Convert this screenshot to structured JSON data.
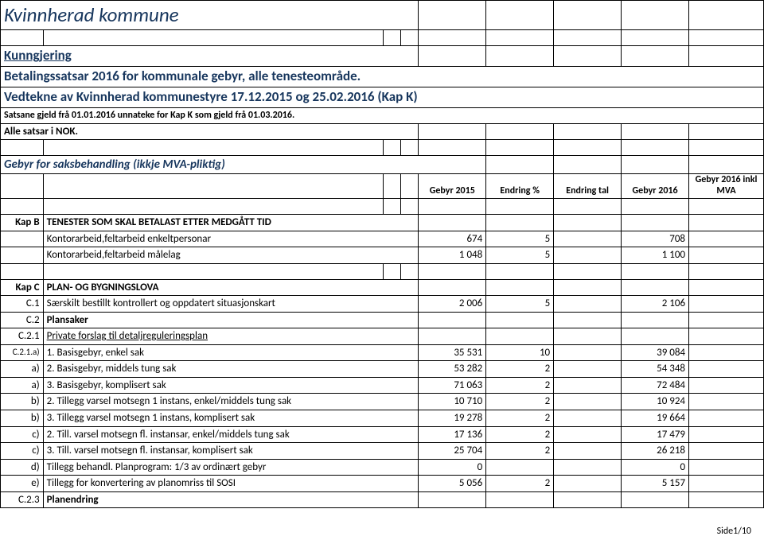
{
  "title": "Kvinnherad kommune",
  "sub1": "Kunngjering",
  "sub2": "Betalingssatsar 2016 for kommunale gebyr, alle tenesteområde.",
  "sub3": "Vedtekne av Kvinnherad kommunestyre 17.12.2015 og 25.02.2016 (Kap K)",
  "note1": "Satsane  gjeld frå 01.01.2016 unnateke for Kap K som gjeld frå 01.03.2016.",
  "note2": "Alle satsar i NOK.",
  "section1": "Gebyr for saksbehandling  (ikkje MVA-pliktig)",
  "hdr": {
    "c1": "Gebyr 2015",
    "c2": "Endring %",
    "c3": "Endring tal",
    "c4": "Gebyr 2016",
    "c5": "Gebyr 2016 inkl MVA"
  },
  "kapB": {
    "code": "Kap B",
    "title": "TENESTER SOM SKAL BETALAST ETTER MEDGÅTT TID"
  },
  "b1": {
    "desc": "Kontorarbeid,feltarbeid enkeltpersonar",
    "g2015": "674",
    "pct": "5",
    "g2016": "708"
  },
  "b2": {
    "desc": "Kontorarbeid,feltarbeid målelag",
    "g2015": "1 048",
    "pct": "5",
    "g2016": "1 100"
  },
  "kapC": {
    "code": "Kap C",
    "title": "PLAN- OG BYGNINGSLOVA"
  },
  "c1": {
    "code": "C.1",
    "desc": "Særskilt bestillt kontrollert og oppdatert situasjonskart",
    "g2015": "2 006",
    "pct": "5",
    "g2016": "2 106"
  },
  "c2": {
    "code": "C.2",
    "desc": "Plansaker"
  },
  "c21": {
    "code": "C.2.1",
    "desc": "Private forslag til detaljreguleringsplan"
  },
  "r1": {
    "code": "C.2.1.a)",
    "desc": "1. Basisgebyr, enkel sak",
    "g2015": "35 531",
    "pct": "10",
    "g2016": "39 084"
  },
  "r2": {
    "code": "a)",
    "desc": "2. Basisgebyr, middels tung sak",
    "g2015": "53 282",
    "pct": "2",
    "g2016": "54 348"
  },
  "r3": {
    "code": "a)",
    "desc": "3. Basisgebyr, komplisert sak",
    "g2015": "71 063",
    "pct": "2",
    "g2016": "72 484"
  },
  "r4": {
    "code": "b)",
    "desc": "2. Tillegg varsel motsegn 1 instans, enkel/middels tung sak",
    "g2015": "10 710",
    "pct": "2",
    "g2016": "10 924"
  },
  "r5": {
    "code": "b)",
    "desc": "3. Tillegg varsel motsegn 1 instans, komplisert sak",
    "g2015": "19 278",
    "pct": "2",
    "g2016": "19 664"
  },
  "r6": {
    "code": "c)",
    "desc": "2. Till. varsel motsegn fl. instansar, enkel/middels tung sak",
    "g2015": "17 136",
    "pct": "2",
    "g2016": "17 479"
  },
  "r7": {
    "code": "c)",
    "desc": "3. Till. varsel motsegn fl. instansar, komplisert sak",
    "g2015": "25 704",
    "pct": "2",
    "g2016": "26 218"
  },
  "r8": {
    "code": "d)",
    "desc": "Tillegg behandl. Planprogram: 1/3 av ordinært gebyr",
    "g2015": "0",
    "pct": "",
    "g2016": "0"
  },
  "r9": {
    "code": "e)",
    "desc": "Tillegg for konvertering av planomriss til SOSI",
    "g2015": "5 056",
    "pct": "2",
    "g2016": "5 157"
  },
  "c23": {
    "code": "C.2.3",
    "desc": "Planendring"
  },
  "pager": "Side1/10"
}
